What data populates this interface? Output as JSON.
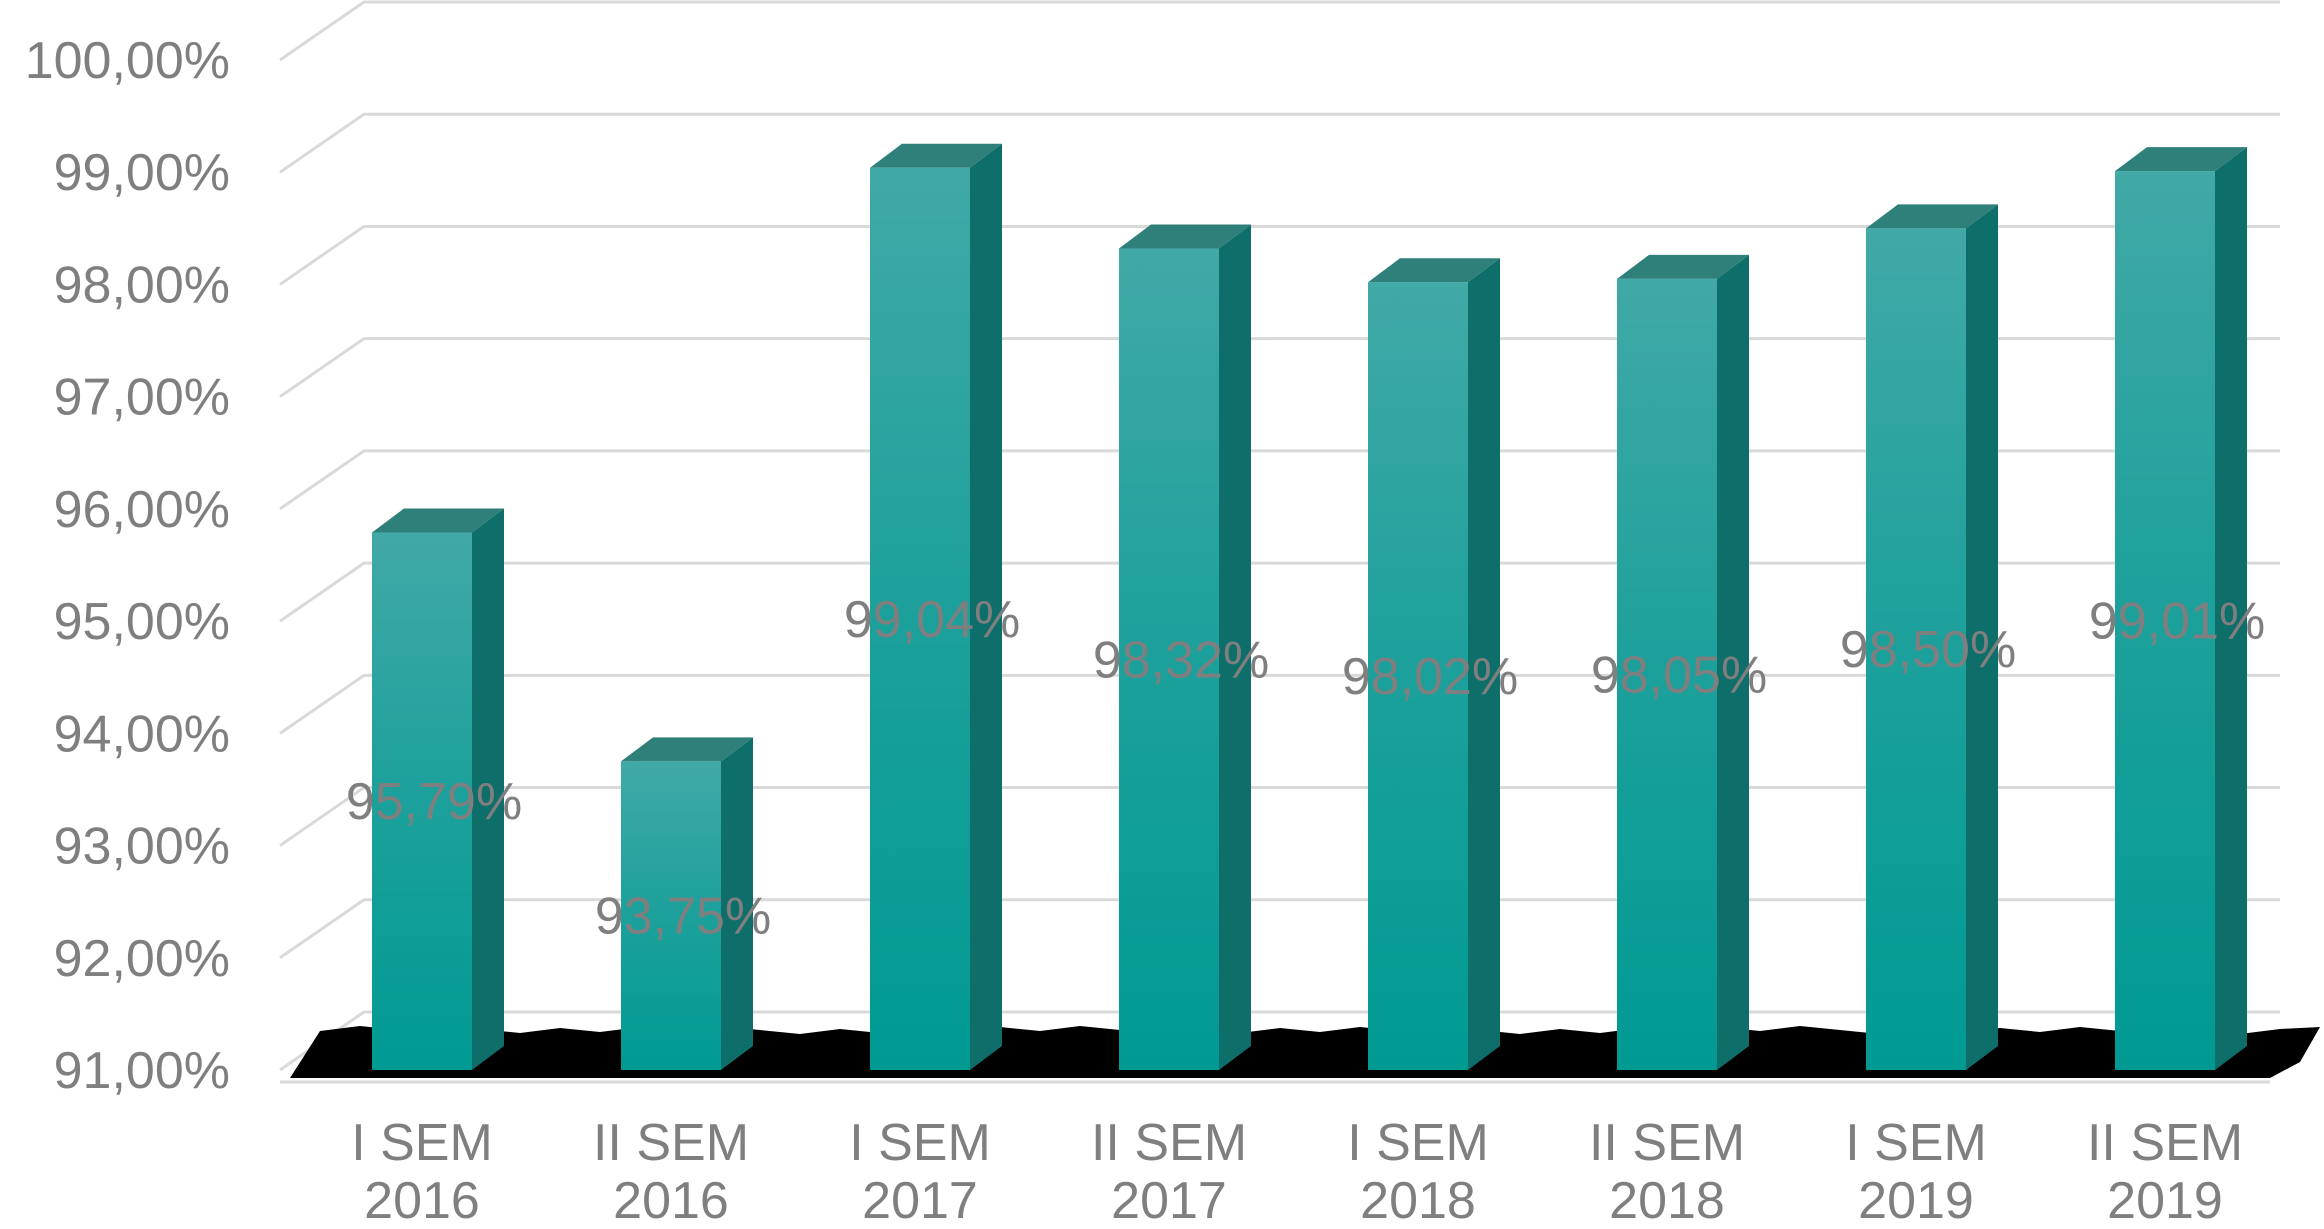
{
  "chart_data": {
    "type": "bar",
    "style": "3d-column",
    "categories": [
      [
        "I SEM",
        "2016"
      ],
      [
        "II SEM",
        "2016"
      ],
      [
        "I SEM",
        "2017"
      ],
      [
        "II SEM",
        "2017"
      ],
      [
        "I SEM",
        "2018"
      ],
      [
        "II SEM",
        "2018"
      ],
      [
        "I SEM",
        "2019"
      ],
      [
        "II SEM",
        "2019"
      ]
    ],
    "values": [
      95.79,
      93.75,
      99.04,
      98.32,
      98.02,
      98.05,
      98.5,
      99.01
    ],
    "data_labels": [
      "95,79%",
      "93,75%",
      "99,04%",
      "98,32%",
      "98,02%",
      "98,05%",
      "98,50%",
      "99,01%"
    ],
    "ylim": [
      91,
      100
    ],
    "yticks": [
      91,
      92,
      93,
      94,
      95,
      96,
      97,
      98,
      99,
      100
    ],
    "ytick_labels": [
      "91,00%",
      "92,00%",
      "93,00%",
      "94,00%",
      "95,00%",
      "96,00%",
      "97,00%",
      "98,00%",
      "99,00%",
      "100,00%"
    ],
    "grid": true,
    "legend": "none",
    "colors": {
      "bar_front_top": "#41a9a6",
      "bar_front_bottom": "#009a93",
      "bar_side": "#0d6e6a",
      "bar_top": "#2f7f7b",
      "floor_shadow": "#000000",
      "gridline": "#d9d9d9",
      "text": "#7f7f7f"
    }
  }
}
